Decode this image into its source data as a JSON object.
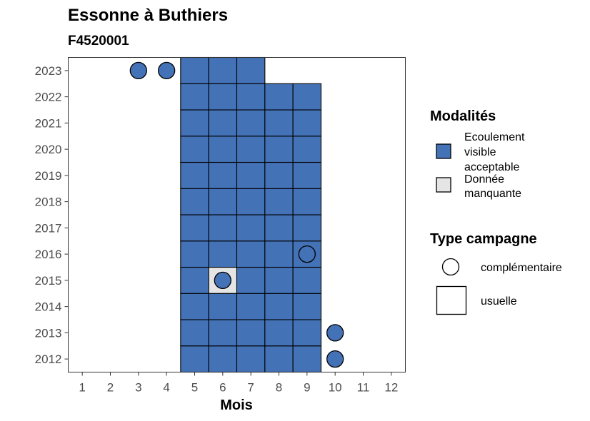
{
  "chart_data": {
    "type": "heatmap",
    "title": "Essonne à Buthiers",
    "subtitle": "F4520001",
    "xlabel": "Mois",
    "ylabel": "",
    "x_ticks": [
      1,
      2,
      3,
      4,
      5,
      6,
      7,
      8,
      9,
      10,
      11,
      12
    ],
    "y_ticks": [
      2012,
      2013,
      2014,
      2015,
      2016,
      2017,
      2018,
      2019,
      2020,
      2021,
      2022,
      2023
    ],
    "xlim": [
      0.5,
      12.5
    ],
    "ylim": [
      2011.5,
      2023.5
    ],
    "grid": false,
    "legend_placement": "right",
    "colors": {
      "ecoulement_visible_acceptable": "#4472b6",
      "donnee_manquante": "#e5e5e5",
      "border": "#000000"
    },
    "legend": {
      "modalites_title": "Modalités",
      "modalites": [
        {
          "key": "ecoulement_visible_acceptable",
          "lines": [
            "Ecoulement",
            "visible",
            "acceptable"
          ]
        },
        {
          "key": "donnee_manquante",
          "lines": [
            "Donnée",
            "manquante"
          ]
        }
      ],
      "type_title": "Type campagne",
      "types": [
        {
          "key": "complementaire",
          "label": "complémentaire",
          "shape": "circle"
        },
        {
          "key": "usuelle",
          "label": "usuelle",
          "shape": "square"
        }
      ]
    },
    "observations": [
      {
        "year": 2012,
        "month": 5,
        "type": "usuelle",
        "modalite": "ecoulement_visible_acceptable"
      },
      {
        "year": 2012,
        "month": 6,
        "type": "usuelle",
        "modalite": "ecoulement_visible_acceptable"
      },
      {
        "year": 2012,
        "month": 7,
        "type": "usuelle",
        "modalite": "ecoulement_visible_acceptable"
      },
      {
        "year": 2012,
        "month": 8,
        "type": "usuelle",
        "modalite": "ecoulement_visible_acceptable"
      },
      {
        "year": 2012,
        "month": 9,
        "type": "usuelle",
        "modalite": "ecoulement_visible_acceptable"
      },
      {
        "year": 2012,
        "month": 10,
        "type": "complementaire",
        "modalite": "ecoulement_visible_acceptable"
      },
      {
        "year": 2013,
        "month": 5,
        "type": "usuelle",
        "modalite": "ecoulement_visible_acceptable"
      },
      {
        "year": 2013,
        "month": 6,
        "type": "usuelle",
        "modalite": "ecoulement_visible_acceptable"
      },
      {
        "year": 2013,
        "month": 7,
        "type": "usuelle",
        "modalite": "ecoulement_visible_acceptable"
      },
      {
        "year": 2013,
        "month": 8,
        "type": "usuelle",
        "modalite": "ecoulement_visible_acceptable"
      },
      {
        "year": 2013,
        "month": 9,
        "type": "usuelle",
        "modalite": "ecoulement_visible_acceptable"
      },
      {
        "year": 2013,
        "month": 10,
        "type": "complementaire",
        "modalite": "ecoulement_visible_acceptable"
      },
      {
        "year": 2014,
        "month": 5,
        "type": "usuelle",
        "modalite": "ecoulement_visible_acceptable"
      },
      {
        "year": 2014,
        "month": 6,
        "type": "usuelle",
        "modalite": "ecoulement_visible_acceptable"
      },
      {
        "year": 2014,
        "month": 7,
        "type": "usuelle",
        "modalite": "ecoulement_visible_acceptable"
      },
      {
        "year": 2014,
        "month": 8,
        "type": "usuelle",
        "modalite": "ecoulement_visible_acceptable"
      },
      {
        "year": 2014,
        "month": 9,
        "type": "usuelle",
        "modalite": "ecoulement_visible_acceptable"
      },
      {
        "year": 2015,
        "month": 5,
        "type": "usuelle",
        "modalite": "ecoulement_visible_acceptable"
      },
      {
        "year": 2015,
        "month": 6,
        "type": "usuelle",
        "modalite": "donnee_manquante"
      },
      {
        "year": 2015,
        "month": 6,
        "type": "complementaire",
        "modalite": "ecoulement_visible_acceptable"
      },
      {
        "year": 2015,
        "month": 7,
        "type": "usuelle",
        "modalite": "ecoulement_visible_acceptable"
      },
      {
        "year": 2015,
        "month": 8,
        "type": "usuelle",
        "modalite": "ecoulement_visible_acceptable"
      },
      {
        "year": 2015,
        "month": 9,
        "type": "usuelle",
        "modalite": "ecoulement_visible_acceptable"
      },
      {
        "year": 2016,
        "month": 5,
        "type": "usuelle",
        "modalite": "ecoulement_visible_acceptable"
      },
      {
        "year": 2016,
        "month": 6,
        "type": "usuelle",
        "modalite": "ecoulement_visible_acceptable"
      },
      {
        "year": 2016,
        "month": 7,
        "type": "usuelle",
        "modalite": "ecoulement_visible_acceptable"
      },
      {
        "year": 2016,
        "month": 8,
        "type": "usuelle",
        "modalite": "ecoulement_visible_acceptable"
      },
      {
        "year": 2016,
        "month": 9,
        "type": "usuelle",
        "modalite": "ecoulement_visible_acceptable"
      },
      {
        "year": 2016,
        "month": 9,
        "type": "complementaire",
        "modalite": "ecoulement_visible_acceptable"
      },
      {
        "year": 2017,
        "month": 5,
        "type": "usuelle",
        "modalite": "ecoulement_visible_acceptable"
      },
      {
        "year": 2017,
        "month": 6,
        "type": "usuelle",
        "modalite": "ecoulement_visible_acceptable"
      },
      {
        "year": 2017,
        "month": 7,
        "type": "usuelle",
        "modalite": "ecoulement_visible_acceptable"
      },
      {
        "year": 2017,
        "month": 8,
        "type": "usuelle",
        "modalite": "ecoulement_visible_acceptable"
      },
      {
        "year": 2017,
        "month": 9,
        "type": "usuelle",
        "modalite": "ecoulement_visible_acceptable"
      },
      {
        "year": 2018,
        "month": 5,
        "type": "usuelle",
        "modalite": "ecoulement_visible_acceptable"
      },
      {
        "year": 2018,
        "month": 6,
        "type": "usuelle",
        "modalite": "ecoulement_visible_acceptable"
      },
      {
        "year": 2018,
        "month": 7,
        "type": "usuelle",
        "modalite": "ecoulement_visible_acceptable"
      },
      {
        "year": 2018,
        "month": 8,
        "type": "usuelle",
        "modalite": "ecoulement_visible_acceptable"
      },
      {
        "year": 2018,
        "month": 9,
        "type": "usuelle",
        "modalite": "ecoulement_visible_acceptable"
      },
      {
        "year": 2019,
        "month": 5,
        "type": "usuelle",
        "modalite": "ecoulement_visible_acceptable"
      },
      {
        "year": 2019,
        "month": 6,
        "type": "usuelle",
        "modalite": "ecoulement_visible_acceptable"
      },
      {
        "year": 2019,
        "month": 7,
        "type": "usuelle",
        "modalite": "ecoulement_visible_acceptable"
      },
      {
        "year": 2019,
        "month": 8,
        "type": "usuelle",
        "modalite": "ecoulement_visible_acceptable"
      },
      {
        "year": 2019,
        "month": 9,
        "type": "usuelle",
        "modalite": "ecoulement_visible_acceptable"
      },
      {
        "year": 2020,
        "month": 5,
        "type": "usuelle",
        "modalite": "ecoulement_visible_acceptable"
      },
      {
        "year": 2020,
        "month": 6,
        "type": "usuelle",
        "modalite": "ecoulement_visible_acceptable"
      },
      {
        "year": 2020,
        "month": 7,
        "type": "usuelle",
        "modalite": "ecoulement_visible_acceptable"
      },
      {
        "year": 2020,
        "month": 8,
        "type": "usuelle",
        "modalite": "ecoulement_visible_acceptable"
      },
      {
        "year": 2020,
        "month": 9,
        "type": "usuelle",
        "modalite": "ecoulement_visible_acceptable"
      },
      {
        "year": 2021,
        "month": 5,
        "type": "usuelle",
        "modalite": "ecoulement_visible_acceptable"
      },
      {
        "year": 2021,
        "month": 6,
        "type": "usuelle",
        "modalite": "ecoulement_visible_acceptable"
      },
      {
        "year": 2021,
        "month": 7,
        "type": "usuelle",
        "modalite": "ecoulement_visible_acceptable"
      },
      {
        "year": 2021,
        "month": 8,
        "type": "usuelle",
        "modalite": "ecoulement_visible_acceptable"
      },
      {
        "year": 2021,
        "month": 9,
        "type": "usuelle",
        "modalite": "ecoulement_visible_acceptable"
      },
      {
        "year": 2022,
        "month": 5,
        "type": "usuelle",
        "modalite": "ecoulement_visible_acceptable"
      },
      {
        "year": 2022,
        "month": 6,
        "type": "usuelle",
        "modalite": "ecoulement_visible_acceptable"
      },
      {
        "year": 2022,
        "month": 7,
        "type": "usuelle",
        "modalite": "ecoulement_visible_acceptable"
      },
      {
        "year": 2022,
        "month": 8,
        "type": "usuelle",
        "modalite": "ecoulement_visible_acceptable"
      },
      {
        "year": 2022,
        "month": 9,
        "type": "usuelle",
        "modalite": "ecoulement_visible_acceptable"
      },
      {
        "year": 2023,
        "month": 3,
        "type": "complementaire",
        "modalite": "ecoulement_visible_acceptable"
      },
      {
        "year": 2023,
        "month": 4,
        "type": "complementaire",
        "modalite": "ecoulement_visible_acceptable"
      },
      {
        "year": 2023,
        "month": 5,
        "type": "usuelle",
        "modalite": "ecoulement_visible_acceptable"
      },
      {
        "year": 2023,
        "month": 6,
        "type": "usuelle",
        "modalite": "ecoulement_visible_acceptable"
      },
      {
        "year": 2023,
        "month": 7,
        "type": "usuelle",
        "modalite": "ecoulement_visible_acceptable"
      }
    ]
  }
}
